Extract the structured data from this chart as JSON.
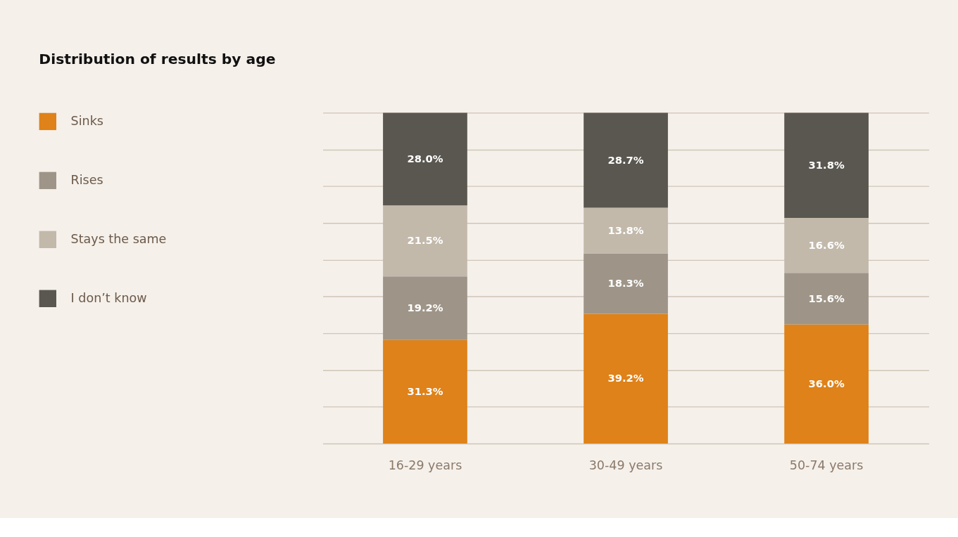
{
  "chart_data": {
    "type": "bar",
    "title": "Distribution of results by age",
    "stacked": true,
    "categories": [
      "16-29 years",
      "30-49 years",
      "50-74 years"
    ],
    "series": [
      {
        "name": "Sinks",
        "color": "#de8219",
        "values": [
          31.3,
          39.2,
          36.0
        ],
        "value_labels": [
          "31.3%",
          "39.2%",
          "36.0%"
        ]
      },
      {
        "name": "Rises",
        "color": "#9e9588",
        "values": [
          19.2,
          18.3,
          15.6
        ],
        "value_labels": [
          "19.2%",
          "18.3%",
          "15.6%"
        ]
      },
      {
        "name": "Stays the same",
        "color": "#c2b9ab",
        "values": [
          21.5,
          13.8,
          16.6
        ],
        "value_labels": [
          "21.5%",
          "13.8%",
          "16.6%"
        ]
      },
      {
        "name": "I don’t know",
        "color": "#5a5750",
        "values": [
          28.0,
          28.7,
          31.8
        ],
        "value_labels": [
          "28.0%",
          "28.7%",
          "31.8%"
        ]
      }
    ],
    "ylim": [
      0,
      100
    ],
    "yticks": [
      {
        "value": 0,
        "label": null
      },
      {
        "value": 11.11,
        "label": null
      },
      {
        "value": 22.22,
        "label": null
      },
      {
        "value": 33.33,
        "label": null
      },
      {
        "value": 44.44,
        "label": null
      },
      {
        "value": 55.56,
        "label": null
      },
      {
        "value": 66.67,
        "label": null
      },
      {
        "value": 77.78,
        "label": null
      },
      {
        "value": 88.89,
        "label": null
      },
      {
        "value": 100,
        "label": null
      }
    ],
    "grid": "y",
    "legend": "left",
    "tick_labels": "x"
  }
}
